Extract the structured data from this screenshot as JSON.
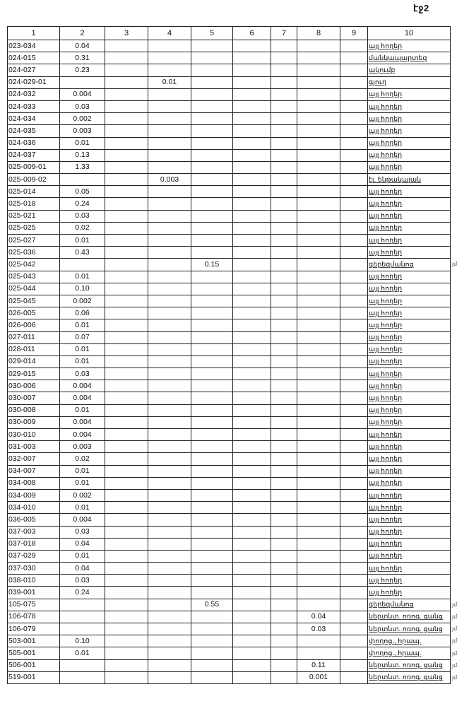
{
  "page_number": "էջ2",
  "columns": [
    "1",
    "2",
    "3",
    "4",
    "5",
    "6",
    "7",
    "8",
    "9",
    "10"
  ],
  "rows": [
    {
      "c1": "023-034",
      "c2": "0.04",
      "c4": "",
      "c5": "",
      "c8": "",
      "c10": "այլ հողեր"
    },
    {
      "c1": "024-015",
      "c2": "0.31",
      "c10": "մանկապարտեզ"
    },
    {
      "c1": "024-027",
      "c2": "0.23",
      "c10": "ակումբ"
    },
    {
      "c1": "024-029-01",
      "c4": "0.01",
      "c10": "գյուղ"
    },
    {
      "c1": "024-032",
      "c2": "0.004",
      "c10": "այլ հողեր"
    },
    {
      "c1": "024-033",
      "c2": "0.03",
      "c10": "այլ հողեր"
    },
    {
      "c1": "024-034",
      "c2": "0.002",
      "c10": "այլ հողեր"
    },
    {
      "c1": "024-035",
      "c2": "0.003",
      "c10": "այլ հողեր"
    },
    {
      "c1": "024-036",
      "c2": "0.01",
      "c10": "այլ հողեր"
    },
    {
      "c1": "024-037",
      "c2": "0.13",
      "c10": "այլ հողեր"
    },
    {
      "c1": "025-009-01",
      "c2": "1.33",
      "c10": "այլ հողեր"
    },
    {
      "c1": "025-009-02",
      "c4": "0.003",
      "c10": "էլ. ենթակայան"
    },
    {
      "c1": "025-014",
      "c2": "0.05",
      "c10": "այլ հողեր"
    },
    {
      "c1": "025-018",
      "c2": "0.24",
      "c10": "այլ հողեր"
    },
    {
      "c1": "025-021",
      "c2": "0.03",
      "c10": "այլ հողեր"
    },
    {
      "c1": "025-025",
      "c2": "0.02",
      "c10": "այլ հողեր"
    },
    {
      "c1": "025-027",
      "c2": "0.01",
      "c10": "այլ հողեր"
    },
    {
      "c1": "025-036",
      "c2": "0.43",
      "c10": "այլ հողեր"
    },
    {
      "c1": "025-042",
      "c5": "0.15",
      "c10": "գերեզմանոց",
      "note": "յմ"
    },
    {
      "c1": "025-043",
      "c2": "0.01",
      "c10": "այլ հողեր"
    },
    {
      "c1": "025-044",
      "c2": "0.10",
      "c10": "այլ հողեր"
    },
    {
      "c1": "025-045",
      "c2": "0.002",
      "c10": "այլ հողեր"
    },
    {
      "c1": "026-005",
      "c2": "0.06",
      "c10": "այլ հողեր"
    },
    {
      "c1": "026-006",
      "c2": "0.01",
      "c10": "այլ հողեր"
    },
    {
      "c1": "027-011",
      "c2": "0.07",
      "c10": "այլ հողեր"
    },
    {
      "c1": "028-011",
      "c2": "0.01",
      "c10": "այլ հողեր"
    },
    {
      "c1": "029-014",
      "c2": "0.01",
      "c10": "այլ հողեր"
    },
    {
      "c1": "029-015",
      "c2": "0.03",
      "c10": "այլ հողեր"
    },
    {
      "c1": "030-006",
      "c2": "0.004",
      "c10": "այլ հողեր"
    },
    {
      "c1": "030-007",
      "c2": "0.004",
      "c10": "այլ հողեր"
    },
    {
      "c1": "030-008",
      "c2": "0.01",
      "c10": "այլ հողեր"
    },
    {
      "c1": "030-009",
      "c2": "0.004",
      "c10": "այլ հողեր"
    },
    {
      "c1": "030-010",
      "c2": "0.004",
      "c10": "այլ հողեր"
    },
    {
      "c1": "031-003",
      "c2": "0.003",
      "c10": "այլ հողեր"
    },
    {
      "c1": "032-007",
      "c2": "0.02",
      "c10": "այլ հողեր"
    },
    {
      "c1": "034-007",
      "c2": "0.01",
      "c10": "այլ հողեր"
    },
    {
      "c1": "034-008",
      "c2": "0.01",
      "c10": "այլ հողեր"
    },
    {
      "c1": "034-009",
      "c2": "0.002",
      "c10": "այլ հողեր"
    },
    {
      "c1": "034-010",
      "c2": "0.01",
      "c10": "այլ հողեր"
    },
    {
      "c1": "036-005",
      "c2": "0.004",
      "c10": "այլ հողեր"
    },
    {
      "c1": "037-003",
      "c2": "0.03",
      "c10": "այլ հողեր"
    },
    {
      "c1": "037-018",
      "c2": "0.04",
      "c10": "այլ հողեր"
    },
    {
      "c1": "037-029",
      "c2": "0.01",
      "c10": "այլ հողեր"
    },
    {
      "c1": "037-030",
      "c2": "0.04",
      "c10": "այլ հողեր"
    },
    {
      "c1": "038-010",
      "c2": "0.03",
      "c10": "այլ հողեր"
    },
    {
      "c1": "039-001",
      "c2": "0.24",
      "c10": "այլ հողեր"
    },
    {
      "c1": "105-075",
      "c5": "0.55",
      "c10": "գերեզմանոց",
      "note": "յմ"
    },
    {
      "c1": "106-078",
      "c8": "0.04",
      "c10": "ներտնտ. ոռոգ. ցանց",
      "note": "յմ"
    },
    {
      "c1": "106-079",
      "c8": "0.03",
      "c10": "ներտնտ. ոռոգ. ցանց",
      "note": "յմ"
    },
    {
      "c1": "503-001",
      "c2": "0.10",
      "c10": "փողոց., հրապ.",
      "note": "յմ"
    },
    {
      "c1": "505-001",
      "c2": "0.01",
      "c10": "փողոց., հրապ.",
      "note": "յմ"
    },
    {
      "c1": "506-001",
      "c8": "0.11",
      "c10": "ներտնտ. ոռոգ. ցանց",
      "note": "յմ"
    },
    {
      "c1": "519-001",
      "c8": "0.001",
      "c10": "ներտնտ. ոռոգ. ցանց",
      "note": "յմ"
    }
  ]
}
